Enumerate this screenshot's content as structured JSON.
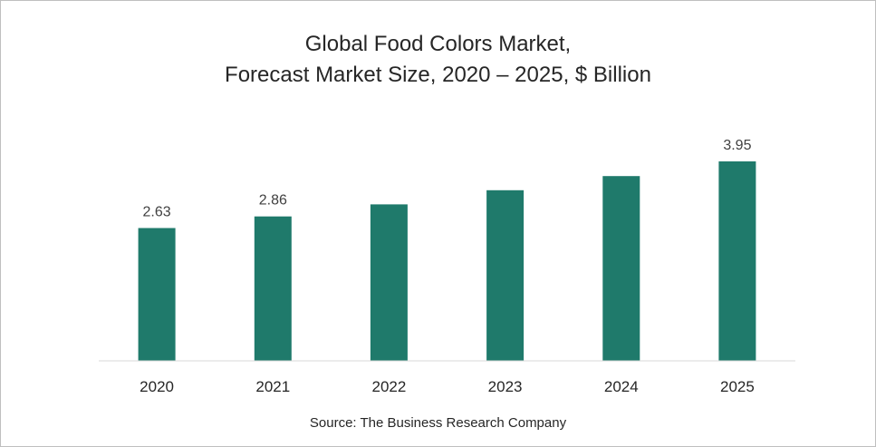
{
  "chart_data": {
    "type": "bar",
    "title": [
      "Global Food Colors Market,",
      "Forecast Market Size, 2020 – 2025, $ Billion"
    ],
    "categories": [
      "2020",
      "2021",
      "2022",
      "2023",
      "2024",
      "2025"
    ],
    "values": [
      2.63,
      2.86,
      3.1,
      3.38,
      3.66,
      3.95
    ],
    "data_labels": [
      "2.63",
      "2.86",
      "",
      "",
      "",
      "3.95"
    ],
    "xlabel": "",
    "ylabel": "",
    "ylim": [
      0,
      4.13
    ],
    "grid": false,
    "legend": "none",
    "bar_color": "#1f7a6b"
  },
  "source": "Source: The Business Research Company"
}
